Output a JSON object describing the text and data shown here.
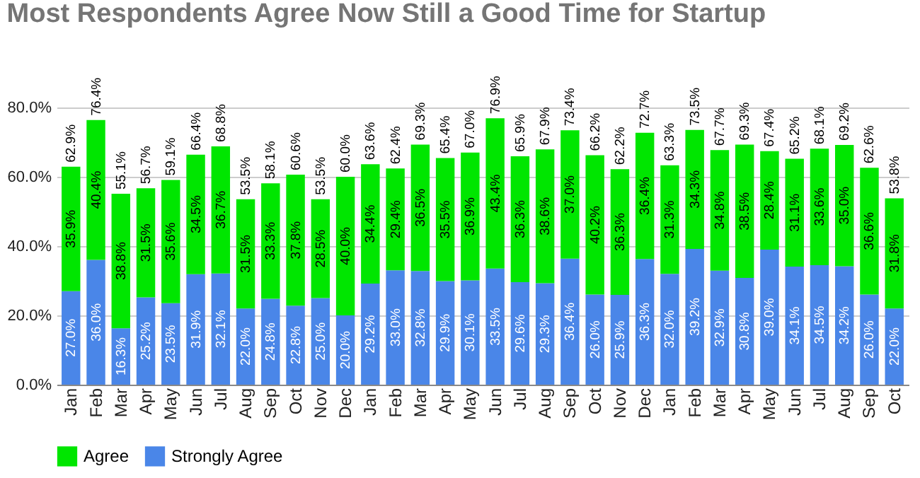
{
  "chart_data": {
    "type": "bar",
    "title": "Most Respondents Agree Now Still a Good Time for Startup",
    "categories": [
      "Jan",
      "Feb",
      "Mar",
      "Apr",
      "May",
      "Jun",
      "Jul",
      "Aug",
      "Sep",
      "Oct",
      "Nov",
      "Dec",
      "Jan",
      "Feb",
      "Mar",
      "Apr",
      "May",
      "Jun",
      "Jul",
      "Aug",
      "Sep",
      "Oct",
      "Nov",
      "Dec",
      "Jan",
      "Feb",
      "Mar",
      "Apr",
      "May",
      "Jun",
      "Jul",
      "Aug",
      "Sep",
      "Oct"
    ],
    "stacked": true,
    "series": [
      {
        "name": "Strongly Agree",
        "color": "#4a86e8",
        "values": [
          27.0,
          36.0,
          16.3,
          25.2,
          23.5,
          31.9,
          32.1,
          22.0,
          24.8,
          22.8,
          25.0,
          20.0,
          29.2,
          33.0,
          32.8,
          29.9,
          30.1,
          33.5,
          29.6,
          29.3,
          36.4,
          26.0,
          25.9,
          36.3,
          32.0,
          39.2,
          32.9,
          30.8,
          39.0,
          34.1,
          34.5,
          34.2,
          26.0,
          22.0
        ],
        "value_labels": [
          "27.0%",
          "36.0%",
          "16.3%",
          "25.2%",
          "23.5%",
          "31.9%",
          "32.1%",
          "22.0%",
          "24.8%",
          "22.8%",
          "25.0%",
          "20.0%",
          "29.2%",
          "33.0%",
          "32.8%",
          "29.9%",
          "30.1%",
          "33.5%",
          "29.6%",
          "29.3%",
          "36.4%",
          "26.0%",
          "25.9%",
          "36.3%",
          "32.0%",
          "39.2%",
          "32.9%",
          "30.8%",
          "39.0%",
          "34.1%",
          "34.5%",
          "34.2%",
          "26.0%",
          "22.0%"
        ]
      },
      {
        "name": "Agree",
        "color": "#00e600",
        "values": [
          35.9,
          40.4,
          38.8,
          31.5,
          35.6,
          34.5,
          36.7,
          31.5,
          33.3,
          37.8,
          28.5,
          40.0,
          34.4,
          29.4,
          36.5,
          35.5,
          36.9,
          43.4,
          36.3,
          38.6,
          37.0,
          40.2,
          36.3,
          36.4,
          31.3,
          34.3,
          34.8,
          38.5,
          28.4,
          31.1,
          33.6,
          35.0,
          36.6,
          31.8
        ],
        "value_labels": [
          "35.9%",
          "40.4%",
          "38.8%",
          "31.5%",
          "35.6%",
          "34.5%",
          "36.7%",
          "31.5%",
          "33.3%",
          "37.8%",
          "28.5%",
          "40.0%",
          "34.4%",
          "29.4%",
          "36.5%",
          "35.5%",
          "36.9%",
          "43.4%",
          "36.3%",
          "38.6%",
          "37.0%",
          "40.2%",
          "36.3%",
          "36.4%",
          "31.3%",
          "34.3%",
          "34.8%",
          "38.5%",
          "28.4%",
          "31.1%",
          "33.6%",
          "35.0%",
          "36.6%",
          "31.8%"
        ]
      }
    ],
    "totals": [
      "62.9%",
      "76.4%",
      "55.1%",
      "56.7%",
      "59.1%",
      "66.4%",
      "68.8%",
      "53.5%",
      "58.1%",
      "60.6%",
      "53.5%",
      "60.0%",
      "63.6%",
      "62.4%",
      "69.3%",
      "65.4%",
      "67.0%",
      "76.9%",
      "65.9%",
      "67.9%",
      "73.4%",
      "66.2%",
      "62.2%",
      "72.7%",
      "63.3%",
      "73.5%",
      "67.7%",
      "69.3%",
      "67.4%",
      "65.2%",
      "68.1%",
      "69.2%",
      "62.6%",
      "53.8%"
    ],
    "ylim": [
      0,
      80
    ],
    "yticks": [
      {
        "value": 0,
        "label": "0.0%"
      },
      {
        "value": 20,
        "label": "20.0%"
      },
      {
        "value": 40,
        "label": "40.0%"
      },
      {
        "value": 60,
        "label": "60.0%"
      },
      {
        "value": 80,
        "label": "80.0%"
      }
    ],
    "grid": "y",
    "legend": "bottom"
  }
}
